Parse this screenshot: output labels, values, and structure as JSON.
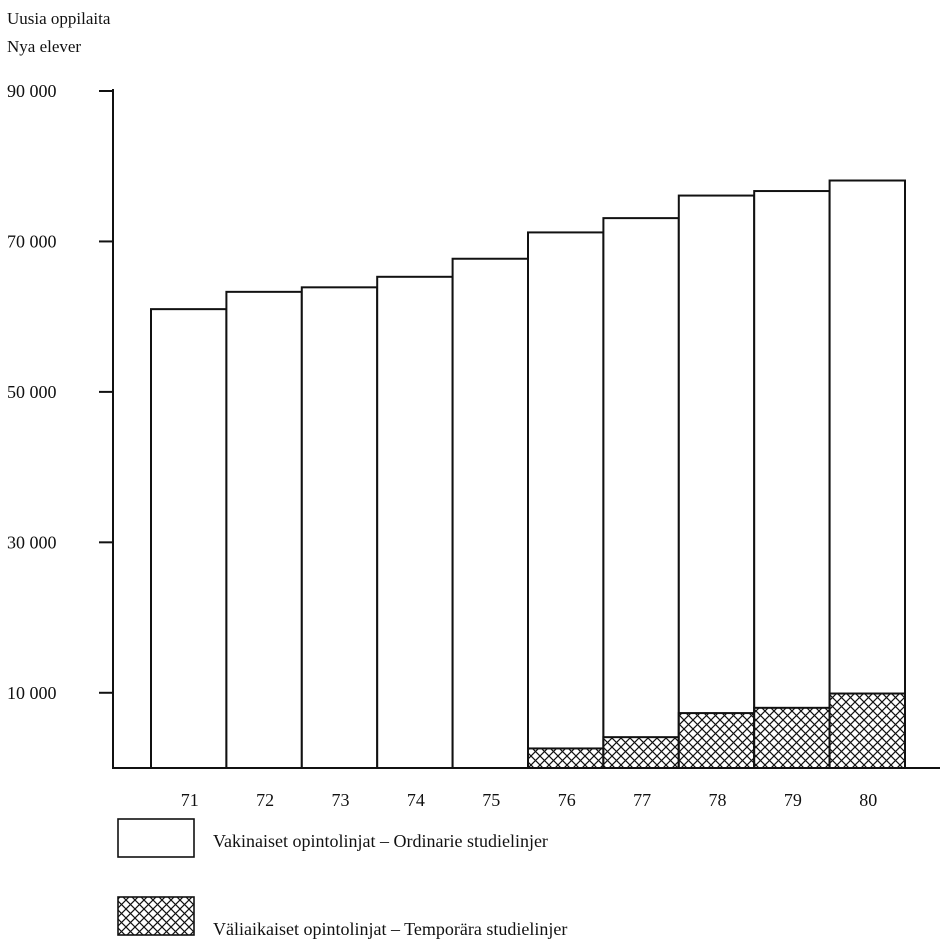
{
  "chart_data": {
    "type": "bar",
    "stacked": true,
    "ylabel": [
      "Uusia oppilaita",
      "Nya elever"
    ],
    "ylim": [
      0,
      90000
    ],
    "yticks": [
      10000,
      30000,
      50000,
      70000,
      90000
    ],
    "ytick_labels": [
      "10 000",
      "30 000",
      "50 000",
      "70 000",
      "90 000"
    ],
    "categories": [
      "71",
      "72",
      "73",
      "74",
      "75",
      "76",
      "77",
      "78",
      "79",
      "80"
    ],
    "series": [
      {
        "name": "Väliaikaiset opintolinjat – Temporära studielinjer",
        "pattern": "crosshatch",
        "values": [
          0,
          0,
          0,
          0,
          0,
          2600,
          4100,
          7300,
          8000,
          9900
        ]
      },
      {
        "name": "Vakinaiset opintolinjat – Ordinarie studielinjer",
        "pattern": "blank",
        "values": [
          61000,
          63300,
          63900,
          65300,
          67700,
          68600,
          69000,
          68800,
          68700,
          68200
        ]
      }
    ],
    "grid": false,
    "legend_position": "bottom-left"
  }
}
